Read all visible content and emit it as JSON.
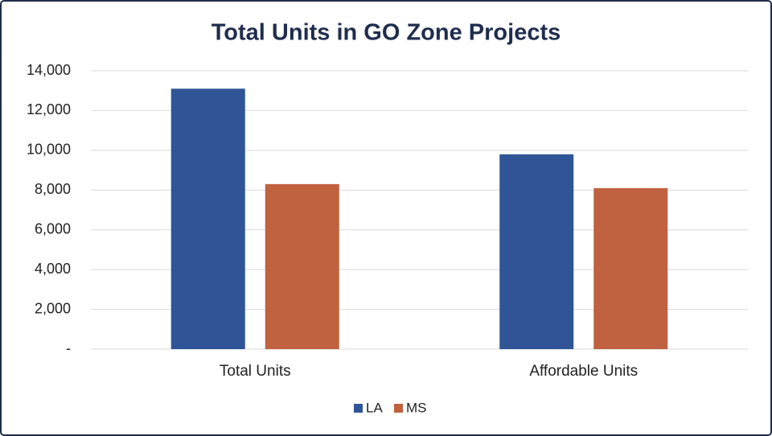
{
  "chart_data": {
    "type": "bar",
    "title": "Total Units in GO Zone Projects",
    "categories": [
      "Total Units",
      "Affordable Units"
    ],
    "series": [
      {
        "name": "LA",
        "color": "#2f5597",
        "values": [
          13100,
          9800
        ]
      },
      {
        "name": "MS",
        "color": "#c0613f",
        "values": [
          8300,
          8100
        ]
      }
    ],
    "ylim": [
      0,
      14000
    ],
    "yticks": [
      {
        "value": 0,
        "label": "-"
      },
      {
        "value": 2000,
        "label": "2,000"
      },
      {
        "value": 4000,
        "label": "4,000"
      },
      {
        "value": 6000,
        "label": "6,000"
      },
      {
        "value": 8000,
        "label": "8,000"
      },
      {
        "value": 10000,
        "label": "10,000"
      },
      {
        "value": 12000,
        "label": "12,000"
      },
      {
        "value": 14000,
        "label": "14,000"
      }
    ],
    "grid": true,
    "legend": "bottom"
  }
}
